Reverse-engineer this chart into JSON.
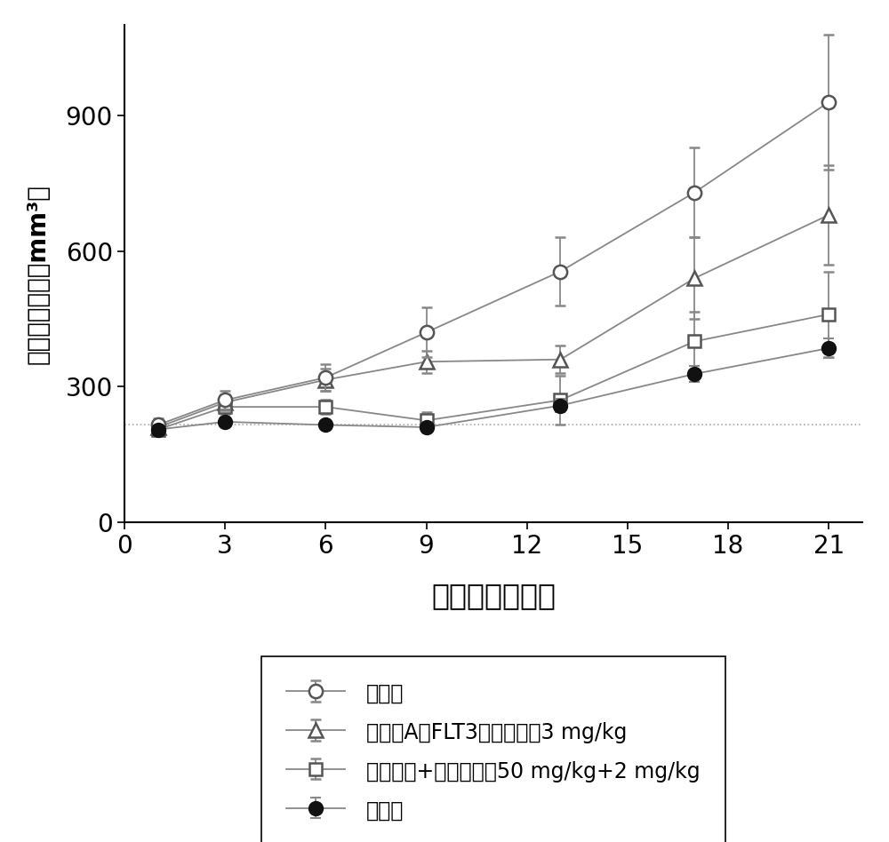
{
  "x": [
    1,
    3,
    6,
    9,
    13,
    17,
    21
  ],
  "control": [
    215,
    270,
    320,
    420,
    555,
    730,
    930
  ],
  "control_err": [
    15,
    20,
    30,
    55,
    75,
    100,
    150
  ],
  "compoundA": [
    210,
    265,
    315,
    355,
    360,
    540,
    680
  ],
  "compoundA_err": [
    12,
    18,
    25,
    25,
    30,
    90,
    110
  ],
  "ara_dauno": [
    205,
    255,
    255,
    225,
    270,
    400,
    460
  ],
  "ara_dauno_err": [
    10,
    15,
    15,
    18,
    55,
    65,
    95
  ],
  "combo": [
    205,
    222,
    215,
    210,
    258,
    328,
    385
  ],
  "combo_err": [
    8,
    10,
    8,
    10,
    15,
    18,
    22
  ],
  "xlabel": "给药天数（天）",
  "ylabel": "平均肿瘤体积（mm³）",
  "legend_control": "对照组",
  "legend_compoundA": "化合物A（FLT3抑制剂），3 mg/kg",
  "legend_ara": "阿糖胞苷+柔红霊素，50 mg/kg+2 mg/kg",
  "legend_combo": "组合组",
  "dotted_y": 215,
  "ylim": [
    0,
    1100
  ],
  "xlim": [
    0,
    22
  ],
  "xticks": [
    0,
    3,
    6,
    9,
    12,
    15,
    18,
    21
  ],
  "yticks": [
    0,
    300,
    600,
    900
  ]
}
